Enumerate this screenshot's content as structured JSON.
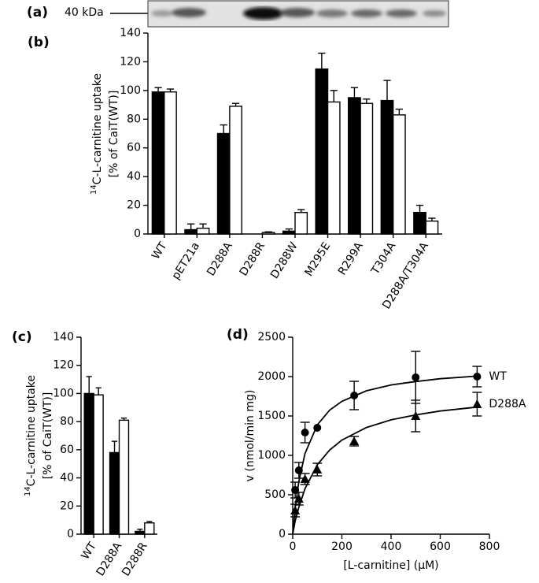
{
  "blot": {
    "label": "(a)",
    "marker": "40 kDa"
  },
  "chart_data": [
    {
      "type": "bar",
      "panel": "(b)",
      "ylabel_sup": "14",
      "ylabel": [
        "C-L-carnitine uptake",
        "[% of CaiT(WT)]"
      ],
      "categories": [
        "WT",
        "pET21a",
        "D288A",
        "D288R",
        "D288W",
        "M295E",
        "R299A",
        "T304A",
        "D288A/T304A"
      ],
      "series": [
        {
          "color": "#000000",
          "values": [
            99,
            3,
            70,
            0,
            2,
            115,
            95,
            93,
            15
          ],
          "errors": [
            3,
            4,
            6,
            0,
            1.5,
            11,
            7,
            14,
            5
          ]
        },
        {
          "color": "#ffffff",
          "values": [
            99,
            4,
            89,
            1,
            15,
            92,
            91,
            83,
            9
          ],
          "errors": [
            2,
            3,
            2,
            0.5,
            2,
            8,
            3,
            4,
            2
          ]
        }
      ],
      "ylim": [
        0,
        140
      ],
      "yticks": [
        0,
        20,
        40,
        60,
        80,
        100,
        120,
        140
      ]
    },
    {
      "type": "bar",
      "panel": "(c)",
      "ylabel_sup": "14",
      "ylabel": [
        "C-L-carnitine uptake",
        "[% of CaiT(WT)]"
      ],
      "categories": [
        "WT",
        "D288A",
        "D288R"
      ],
      "series": [
        {
          "color": "#000000",
          "values": [
            100,
            58,
            2
          ],
          "errors": [
            12,
            8,
            1.5
          ]
        },
        {
          "color": "#ffffff",
          "values": [
            99,
            81,
            8
          ],
          "errors": [
            5,
            1.5,
            1
          ]
        }
      ],
      "ylim": [
        0,
        140
      ],
      "yticks": [
        0,
        20,
        40,
        60,
        80,
        100,
        120,
        140
      ]
    },
    {
      "type": "scatter",
      "panel": "(d)",
      "xlabel": "[L-carnitine] (µM)",
      "ylabel": "v (nmol/min mg)",
      "series": [
        {
          "name": "WT",
          "color": "#000000",
          "marker": "circle",
          "x": [
            10,
            25,
            50,
            100,
            250,
            500,
            750
          ],
          "values": [
            560,
            810,
            1290,
            1350,
            1760,
            1990,
            2000
          ],
          "errors": [
            100,
            100,
            130,
            0,
            180,
            330,
            130
          ],
          "fit_x": [
            0,
            10,
            25,
            50,
            100,
            150,
            200,
            300,
            400,
            500,
            600,
            750
          ],
          "fit_values": [
            0,
            331,
            671,
            1024,
            1387,
            1573,
            1686,
            1820,
            1894,
            1937,
            1973,
            2006
          ]
        },
        {
          "name": "D288A",
          "color": "#000000",
          "marker": "triangle",
          "x": [
            10,
            25,
            50,
            100,
            250,
            500,
            750
          ],
          "values": [
            300,
            450,
            700,
            820,
            1180,
            1500,
            1650
          ],
          "errors": [
            80,
            80,
            70,
            80,
            60,
            200,
            150
          ],
          "fit_x": [
            0,
            10,
            25,
            50,
            100,
            150,
            200,
            300,
            400,
            500,
            600,
            750
          ],
          "fit_values": [
            0,
            168,
            342,
            578,
            881,
            1067,
            1194,
            1354,
            1451,
            1514,
            1563,
            1613
          ]
        }
      ],
      "xlim": [
        0,
        800
      ],
      "xticks": [
        0,
        200,
        400,
        600,
        800
      ],
      "ylim": [
        0,
        2500
      ],
      "yticks": [
        0,
        500,
        1000,
        1500,
        2000,
        2500
      ]
    }
  ]
}
